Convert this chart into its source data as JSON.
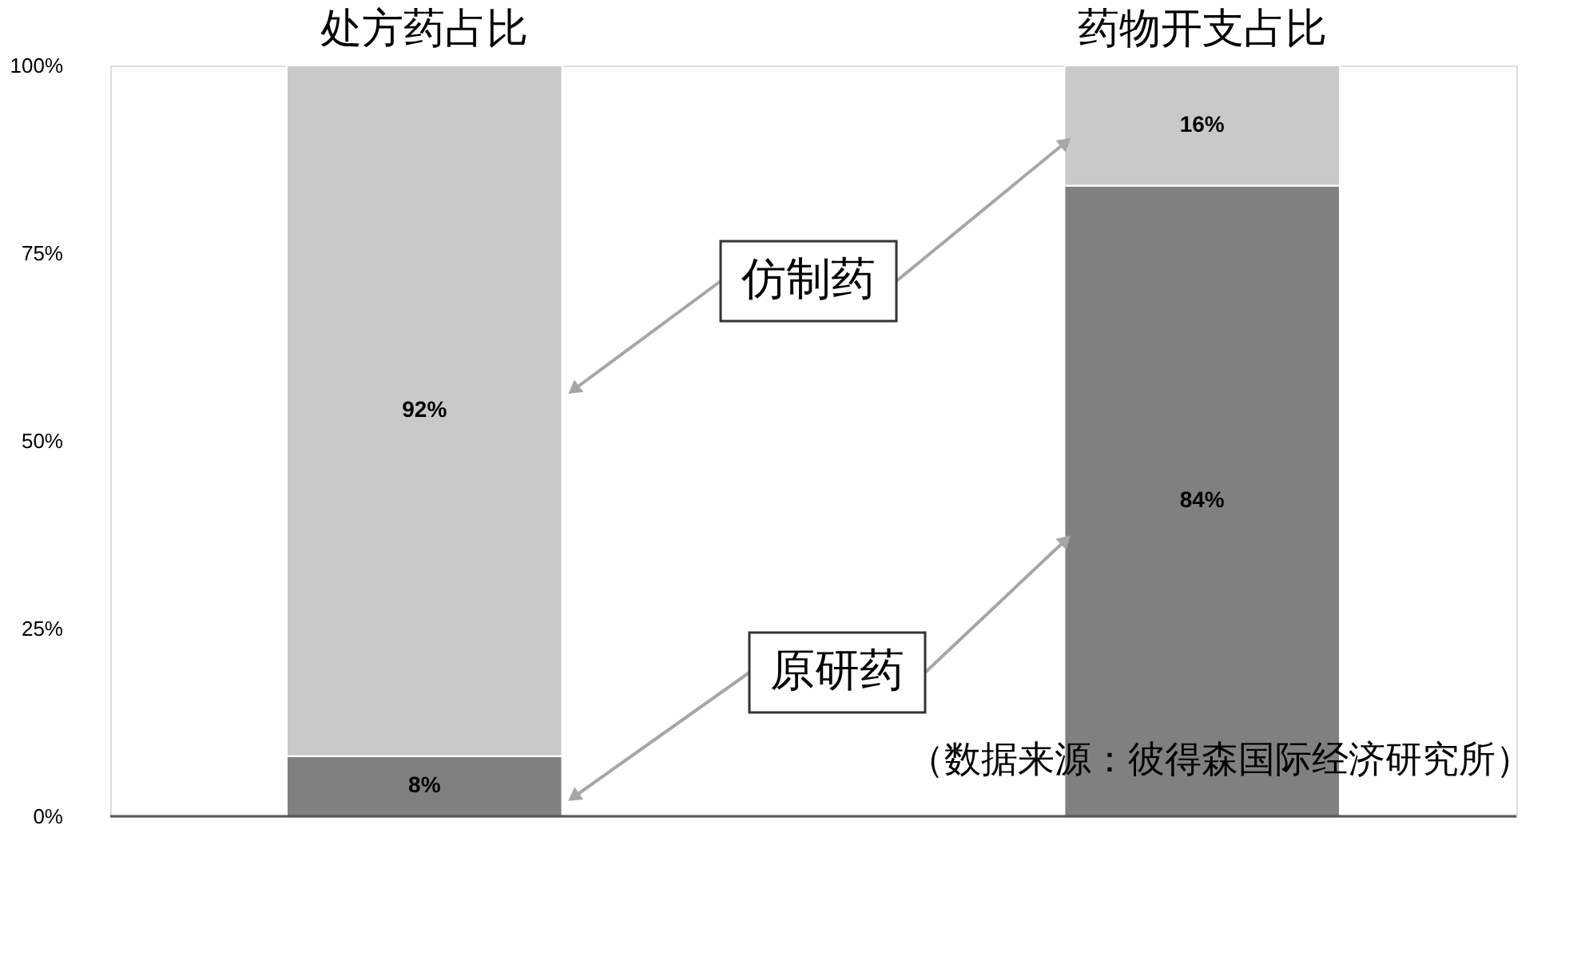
{
  "chart_data": {
    "type": "bar",
    "stacked": true,
    "categories": [
      "处方药占比",
      "药物开支占比"
    ],
    "series": [
      {
        "name": "原研药",
        "color": "#808080",
        "values": [
          8,
          84
        ],
        "value_labels": [
          "8%",
          "84%"
        ]
      },
      {
        "name": "仿制药",
        "color": "#c9c9c9",
        "values": [
          92,
          16
        ],
        "value_labels": [
          "92%",
          "16%"
        ]
      }
    ],
    "ylim": [
      0,
      100
    ],
    "yticks": [
      {
        "value": 0,
        "label": "0%"
      },
      {
        "value": 25,
        "label": "25%"
      },
      {
        "value": 50,
        "label": "50%"
      },
      {
        "value": 75,
        "label": "75%"
      },
      {
        "value": 100,
        "label": "100%"
      }
    ],
    "grid": false,
    "legend": false,
    "annotations": [
      "（数据来源：彼得森国际经济研究所）"
    ]
  }
}
